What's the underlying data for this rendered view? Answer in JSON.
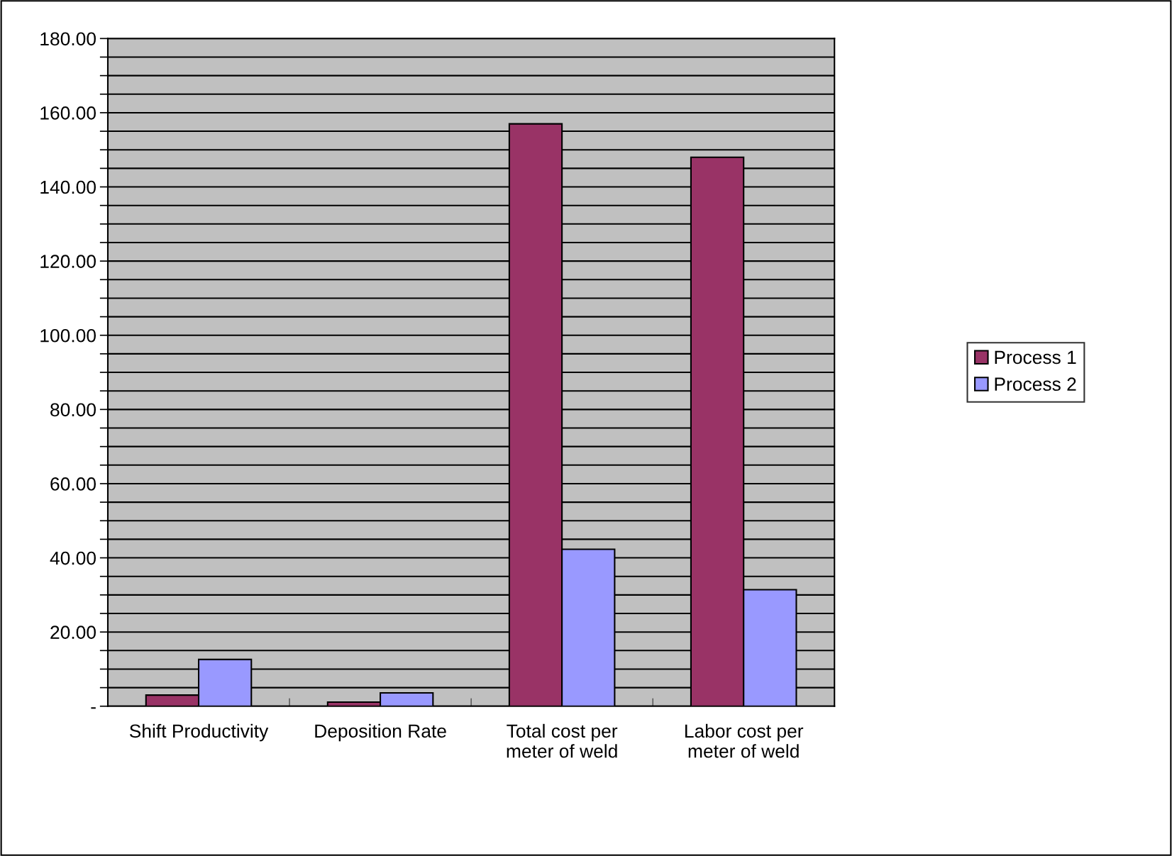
{
  "chart_data": {
    "type": "bar",
    "categories": [
      "Shift Productivity",
      "Deposition Rate",
      "Total cost per\nmeter of weld",
      "Labor cost per\nmeter of weld"
    ],
    "series": [
      {
        "name": "Process 1",
        "color": "#993366",
        "values": [
          3.0,
          1.1,
          157.0,
          148.0
        ]
      },
      {
        "name": "Process 2",
        "color": "#9999ff",
        "values": [
          12.6,
          3.6,
          42.3,
          31.4
        ]
      }
    ],
    "ylim": [
      0,
      180
    ],
    "yticks": [
      {
        "value": 0,
        "label": "-"
      },
      {
        "value": 5,
        "label": null
      },
      {
        "value": 10,
        "label": null
      },
      {
        "value": 15,
        "label": null
      },
      {
        "value": 20,
        "label": "20.00"
      },
      {
        "value": 25,
        "label": null
      },
      {
        "value": 30,
        "label": null
      },
      {
        "value": 35,
        "label": null
      },
      {
        "value": 40,
        "label": "40.00"
      },
      {
        "value": 45,
        "label": null
      },
      {
        "value": 50,
        "label": null
      },
      {
        "value": 55,
        "label": null
      },
      {
        "value": 60,
        "label": "60.00"
      },
      {
        "value": 65,
        "label": null
      },
      {
        "value": 70,
        "label": null
      },
      {
        "value": 75,
        "label": null
      },
      {
        "value": 80,
        "label": "80.00"
      },
      {
        "value": 85,
        "label": null
      },
      {
        "value": 90,
        "label": null
      },
      {
        "value": 95,
        "label": null
      },
      {
        "value": 100,
        "label": "100.00"
      },
      {
        "value": 105,
        "label": null
      },
      {
        "value": 110,
        "label": null
      },
      {
        "value": 115,
        "label": null
      },
      {
        "value": 120,
        "label": "120.00"
      },
      {
        "value": 125,
        "label": null
      },
      {
        "value": 130,
        "label": null
      },
      {
        "value": 135,
        "label": null
      },
      {
        "value": 140,
        "label": "140.00"
      },
      {
        "value": 145,
        "label": null
      },
      {
        "value": 150,
        "label": null
      },
      {
        "value": 155,
        "label": null
      },
      {
        "value": 160,
        "label": "160.00"
      },
      {
        "value": 165,
        "label": null
      },
      {
        "value": 170,
        "label": null
      },
      {
        "value": 175,
        "label": null
      },
      {
        "value": 180,
        "label": "180.00"
      }
    ],
    "grid": "y",
    "legend": "right"
  }
}
